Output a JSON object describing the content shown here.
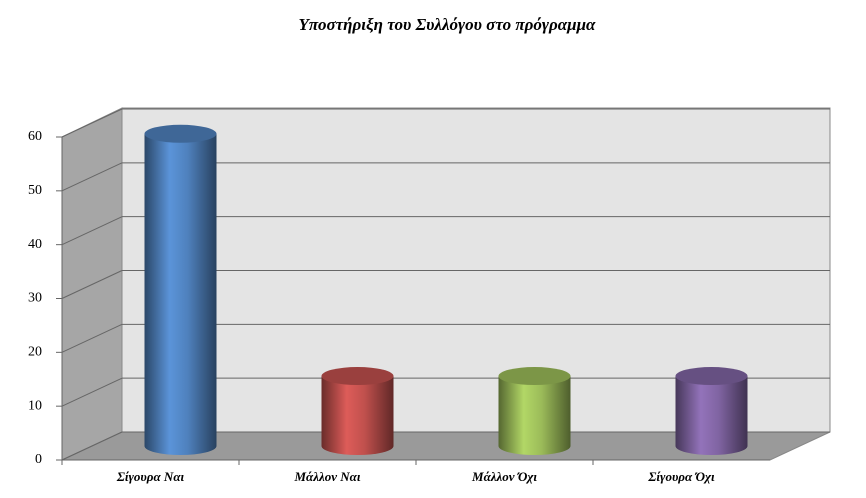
{
  "chart_data": {
    "type": "bar3d",
    "title": "Υποστήριξη του Συλλόγου στο πρόγραμμα",
    "categories": [
      "Σίγουρα Ναι",
      "Μάλλον Ναι",
      "Μάλλον Όχι",
      "Σίγουρα Όχι"
    ],
    "values": [
      58,
      13,
      13,
      13
    ],
    "colors": [
      "#4f81bd",
      "#c0504d",
      "#9bbb59",
      "#8064a2"
    ],
    "ylim": [
      0,
      60
    ],
    "yticks": [
      0,
      10,
      20,
      30,
      40,
      50,
      60
    ],
    "grid": true
  }
}
